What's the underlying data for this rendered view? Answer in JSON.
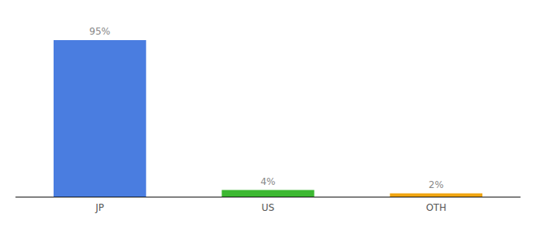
{
  "chart_data": {
    "type": "bar",
    "categories": [
      "JP",
      "US",
      "OTH"
    ],
    "values": [
      95,
      4,
      2
    ],
    "value_labels": [
      "95%",
      "4%",
      "2%"
    ],
    "colors": [
      "#4a7de0",
      "#3db832",
      "#f0a614"
    ],
    "ylim": [
      0,
      105
    ],
    "grid": false,
    "data_labels": true,
    "tick_labels": "x"
  }
}
